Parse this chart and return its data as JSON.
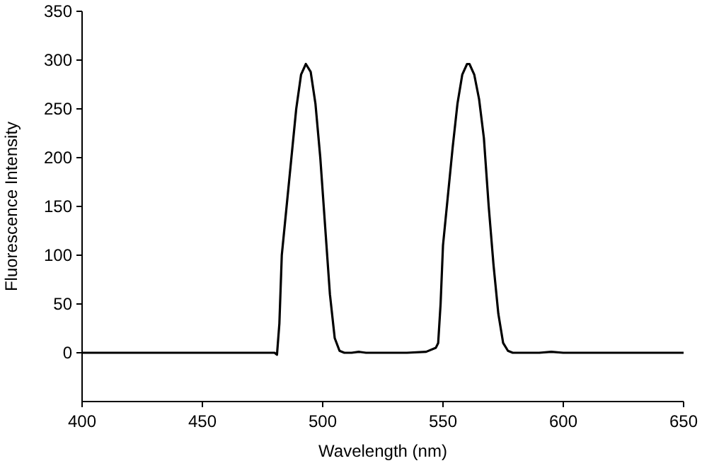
{
  "chart_data": {
    "type": "line",
    "xlabel": "Wavelength (nm)",
    "ylabel": "Fluorescence Intensity",
    "xlim": [
      400,
      650
    ],
    "ylim": [
      -50,
      350
    ],
    "xticks": [
      400,
      450,
      500,
      550,
      600,
      650
    ],
    "yticks": [
      0,
      50,
      100,
      150,
      200,
      250,
      300,
      350
    ],
    "grid": false,
    "marker": "none",
    "line_style": "solid",
    "series": [
      {
        "color": "#000000",
        "x": [
          400,
          450,
          480,
          481,
          482,
          483,
          485,
          487,
          489,
          491,
          493,
          495,
          497,
          499,
          501,
          503,
          505,
          507,
          509,
          512,
          515,
          518,
          525,
          535,
          543,
          547,
          548,
          549,
          550,
          552,
          554,
          556,
          558,
          560,
          561,
          563,
          565,
          567,
          569,
          571,
          573,
          575,
          577,
          579,
          582,
          590,
          595,
          600,
          650
        ],
        "values": [
          0,
          0,
          0,
          -2,
          30,
          100,
          150,
          200,
          250,
          285,
          296,
          288,
          255,
          200,
          130,
          60,
          15,
          2,
          0,
          0,
          1,
          0,
          0,
          0,
          1,
          5,
          10,
          50,
          110,
          160,
          210,
          255,
          285,
          296,
          296,
          285,
          260,
          220,
          150,
          90,
          40,
          10,
          2,
          0,
          0,
          0,
          1,
          0,
          0
        ]
      }
    ]
  }
}
